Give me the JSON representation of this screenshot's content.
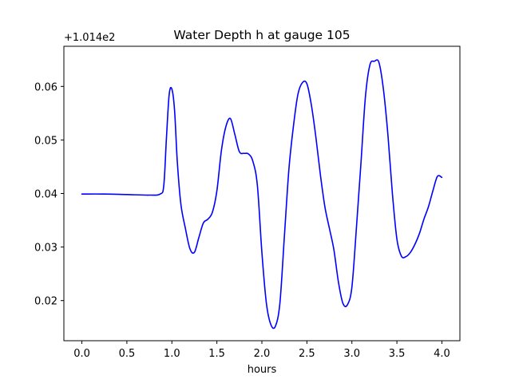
{
  "chart_data": {
    "type": "line",
    "title": "Water Depth h at gauge 105",
    "xlabel": "hours",
    "ylabel": "",
    "y_offset_label": "+1.014e2",
    "y_offset": 101.4,
    "xlim": [
      -0.2,
      4.2
    ],
    "ylim": [
      0.0125,
      0.0675
    ],
    "x_ticks": [
      0.0,
      0.5,
      1.0,
      1.5,
      2.0,
      2.5,
      3.0,
      3.5,
      4.0
    ],
    "x_tick_labels": [
      "0.0",
      "0.5",
      "1.0",
      "1.5",
      "2.0",
      "2.5",
      "3.0",
      "3.5",
      "4.0"
    ],
    "y_ticks": [
      0.02,
      0.03,
      0.04,
      0.05,
      0.06
    ],
    "y_tick_labels": [
      "0.02",
      "0.03",
      "0.04",
      "0.05",
      "0.06"
    ],
    "grid": false,
    "line_color": "#0000ff",
    "series": [
      {
        "x": [
          0.0,
          0.25,
          0.5,
          0.75,
          0.87,
          0.91,
          0.94,
          0.97,
          1.0,
          1.03,
          1.06,
          1.1,
          1.15,
          1.2,
          1.25,
          1.3,
          1.35,
          1.4,
          1.45,
          1.5,
          1.55,
          1.6,
          1.65,
          1.7,
          1.75,
          1.8,
          1.85,
          1.9,
          1.95,
          2.0,
          2.05,
          2.1,
          2.15,
          2.2,
          2.25,
          2.3,
          2.35,
          2.4,
          2.45,
          2.5,
          2.55,
          2.6,
          2.65,
          2.7,
          2.75,
          2.8,
          2.85,
          2.9,
          2.95,
          3.0,
          3.05,
          3.1,
          3.15,
          3.2,
          3.25,
          3.3,
          3.35,
          3.4,
          3.45,
          3.5,
          3.55,
          3.6,
          3.65,
          3.7,
          3.75,
          3.8,
          3.85,
          3.9,
          3.95,
          4.0
        ],
        "y": [
          0.0399,
          0.0399,
          0.0398,
          0.0397,
          0.0399,
          0.0415,
          0.0505,
          0.0585,
          0.0595,
          0.0555,
          0.046,
          0.038,
          0.0335,
          0.0297,
          0.029,
          0.0318,
          0.0345,
          0.0352,
          0.0365,
          0.0405,
          0.048,
          0.0525,
          0.054,
          0.051,
          0.0478,
          0.0475,
          0.0474,
          0.046,
          0.0415,
          0.029,
          0.0195,
          0.0155,
          0.0152,
          0.0195,
          0.032,
          0.0445,
          0.0525,
          0.0585,
          0.0607,
          0.0605,
          0.0565,
          0.0505,
          0.0435,
          0.0375,
          0.0335,
          0.0295,
          0.0235,
          0.0195,
          0.0192,
          0.0225,
          0.0335,
          0.0455,
          0.058,
          0.064,
          0.0647,
          0.0645,
          0.0595,
          0.051,
          0.04,
          0.0315,
          0.0283,
          0.0282,
          0.029,
          0.0305,
          0.0325,
          0.0352,
          0.0375,
          0.0405,
          0.0432,
          0.043
        ]
      }
    ]
  }
}
